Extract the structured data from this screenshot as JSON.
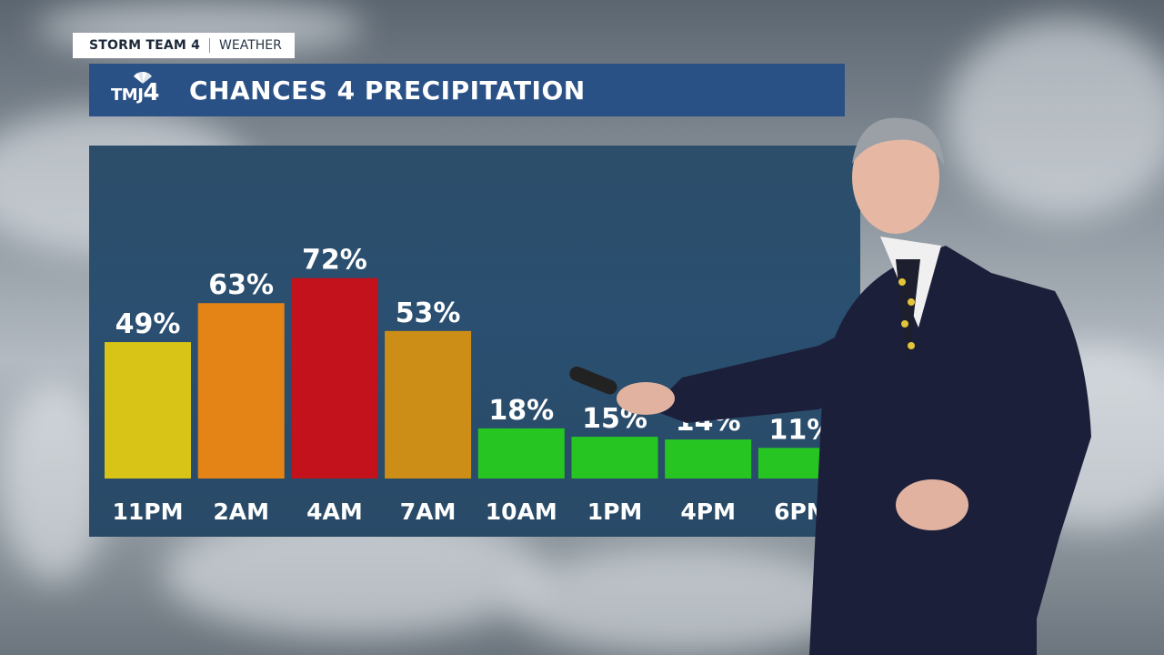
{
  "brand": {
    "tag_primary": "STORM TEAM 4",
    "tag_secondary": "WEATHER",
    "logo_letters": "TMJ",
    "logo_number": "4"
  },
  "header": {
    "title": "CHANCES 4 PRECIPITATION"
  },
  "chart_data": {
    "type": "bar",
    "categories": [
      "11PM",
      "2AM",
      "4AM",
      "7AM",
      "10AM",
      "1PM",
      "4PM",
      "6PM"
    ],
    "values": [
      49,
      63,
      72,
      53,
      18,
      15,
      14,
      11
    ],
    "value_labels": [
      "49%",
      "63%",
      "72%",
      "53%",
      "18%",
      "15%",
      "14%",
      "11%"
    ],
    "unit": "%",
    "ylim": [
      0,
      100
    ],
    "bar_colors": [
      "#d8c416",
      "#e58416",
      "#c4121c",
      "#cc8e16",
      "#27c522",
      "#27c522",
      "#27c522",
      "#27c522"
    ],
    "grid": false,
    "legend": "none"
  },
  "colors": {
    "panel": "#2a4f70",
    "title_bar": "#2a5186",
    "text": "#ffffff"
  }
}
